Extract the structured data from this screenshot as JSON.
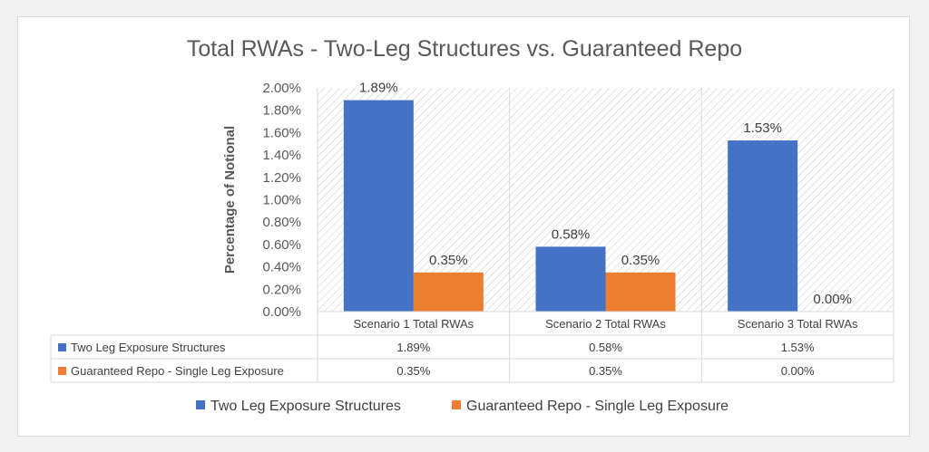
{
  "chart_data": {
    "type": "bar",
    "title": "Total RWAs - Two-Leg Structures vs. Guaranteed Repo",
    "ylabel": "Percentage of Notional",
    "xlabel": "",
    "ylim": [
      0,
      0.02
    ],
    "yticks": [
      "0.00%",
      "0.20%",
      "0.40%",
      "0.60%",
      "0.80%",
      "1.00%",
      "1.20%",
      "1.40%",
      "1.60%",
      "1.80%",
      "2.00%"
    ],
    "categories": [
      "Scenario 1 Total RWAs",
      "Scenario 2 Total RWAs",
      "Scenario 3 Total RWAs"
    ],
    "series": [
      {
        "name": "Two Leg Exposure Structures",
        "color": "#4472c4",
        "values": [
          0.0189,
          0.0058,
          0.0153
        ],
        "labels": [
          "1.89%",
          "0.58%",
          "1.53%"
        ]
      },
      {
        "name": "Guaranteed Repo - Single Leg Exposure",
        "color": "#ed7d31",
        "values": [
          0.0035,
          0.0035,
          0.0
        ],
        "labels": [
          "0.35%",
          "0.35%",
          "0.00%"
        ]
      }
    ],
    "grid": false,
    "background_pattern": "diagonal-hatch",
    "data_table": true,
    "legend_position": "bottom"
  }
}
